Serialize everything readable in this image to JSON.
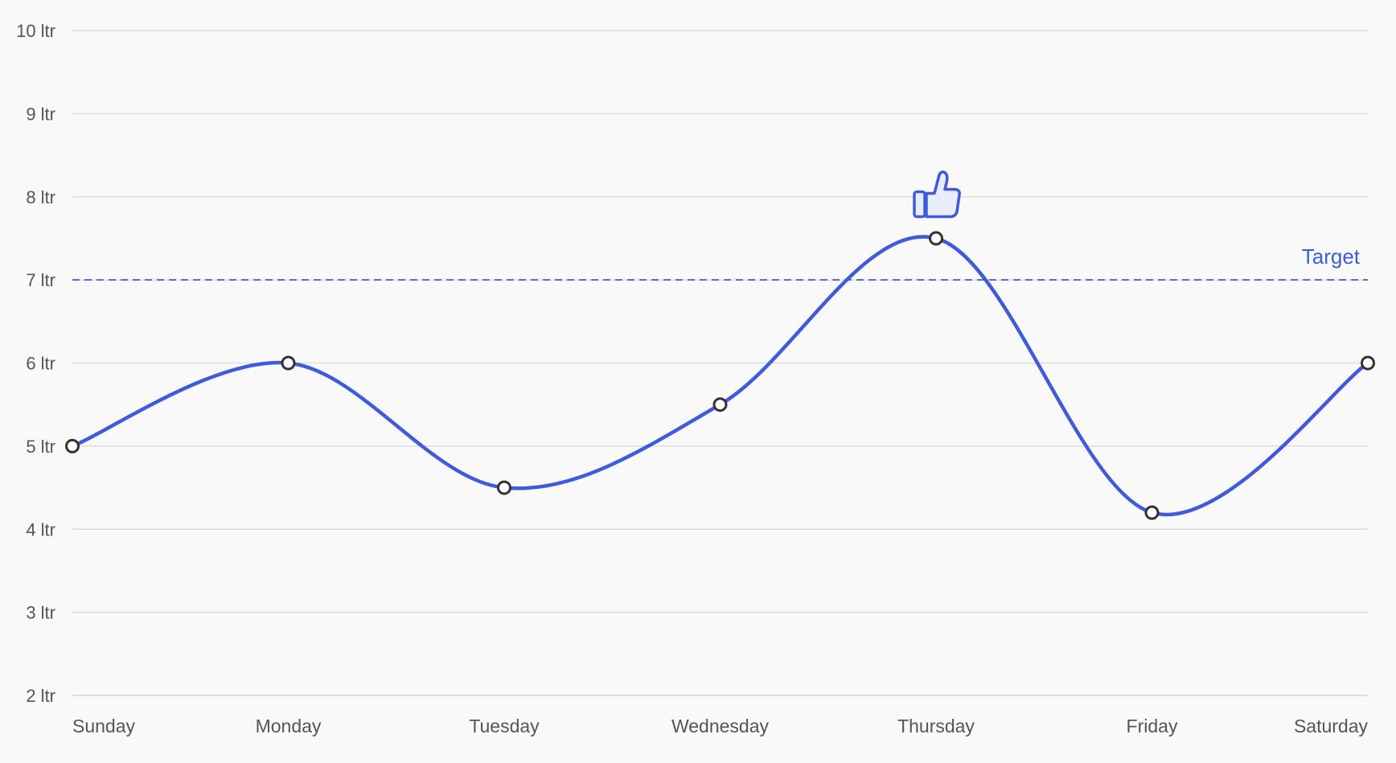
{
  "chart_data": {
    "type": "line",
    "title": "",
    "xlabel": "",
    "ylabel": "",
    "categories": [
      "Sunday",
      "Monday",
      "Tuesday",
      "Wednesday",
      "Thursday",
      "Friday",
      "Saturday"
    ],
    "series": [
      {
        "values": [
          5,
          6,
          4.5,
          5.5,
          7.5,
          4.2,
          6
        ],
        "color": "#3f5bd9",
        "smooth": true
      }
    ],
    "ylim": [
      2,
      10
    ],
    "yticks": [
      2,
      3,
      4,
      5,
      6,
      7,
      8,
      9,
      10
    ],
    "ytick_labels": [
      "2 ltr",
      "3 ltr",
      "4 ltr",
      "5 ltr",
      "6 ltr",
      "7 ltr",
      "8 ltr",
      "9 ltr",
      "10 ltr"
    ],
    "grid": true,
    "legend": "none",
    "target": {
      "value": 7,
      "label": "Target",
      "color": "#3f5bd9",
      "style": "dashed"
    },
    "annotations": [
      {
        "category": "Thursday",
        "icon": "thumbs-up-icon",
        "color": "#3f5bd9"
      }
    ]
  },
  "colors": {
    "background": "#f9f9f9",
    "grid": "#dddddd",
    "axis_text": "#555555",
    "marker_stroke": "#333333",
    "marker_fill": "#ffffff"
  }
}
